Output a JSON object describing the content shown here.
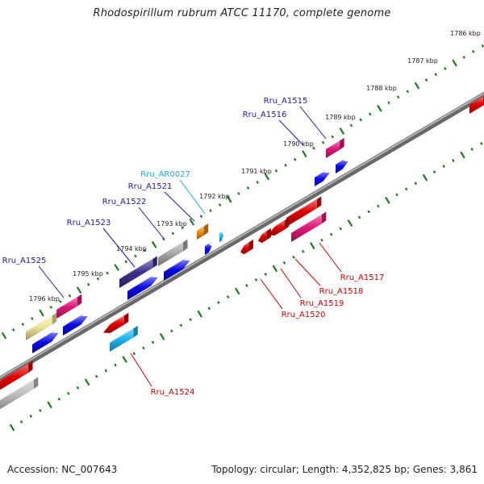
{
  "title": "Rhodospirillum rubrum ATCC 11170, complete genome",
  "footer": {
    "accession": "Accession: NC_007643",
    "stats": "Topology: circular; Length: 4,352,825 bp; Genes: 3,861"
  },
  "colors": {
    "backbone": "#8a8a8a",
    "tick": "#1f7a1f",
    "label_forward": "#1a1aa6",
    "label_reverse": "#cc0000",
    "label_rna": "#1fa8e0"
  },
  "kbp_labels": [
    "1786 kbp",
    "1787 kbp",
    "1788 kbp",
    "1789 kbp",
    "1790 kbp",
    "1791 kbp",
    "1792 kbp",
    "1793 kbp",
    "1794 kbp",
    "1795 kbp",
    "1796 kbp"
  ],
  "forward_genes": [
    {
      "id": "Rru_A1515",
      "color": "#e0187a"
    },
    {
      "id": "Rru_A1516",
      "color": "#0b0be0"
    },
    {
      "id": "Rru_AR0027",
      "color": "#1fb4ee"
    },
    {
      "id": "Rru_A1521",
      "color": "#0b0be0"
    },
    {
      "id": "Rru_A1522",
      "color": "#a8a8a8"
    },
    {
      "id": "Rru_A1523",
      "color": "#3e2f8c"
    },
    {
      "id": "Rru_A1525",
      "color": "#0b0be0"
    }
  ],
  "reverse_genes": [
    {
      "id": "Rru_A1517",
      "color": "#e0187a"
    },
    {
      "id": "Rru_A1518",
      "color": "#e00000"
    },
    {
      "id": "Rru_A1519",
      "color": "#e00000"
    },
    {
      "id": "Rru_A1520",
      "color": "#e00000"
    },
    {
      "id": "Rru_A1524",
      "color": "#1fb4ee"
    }
  ]
}
